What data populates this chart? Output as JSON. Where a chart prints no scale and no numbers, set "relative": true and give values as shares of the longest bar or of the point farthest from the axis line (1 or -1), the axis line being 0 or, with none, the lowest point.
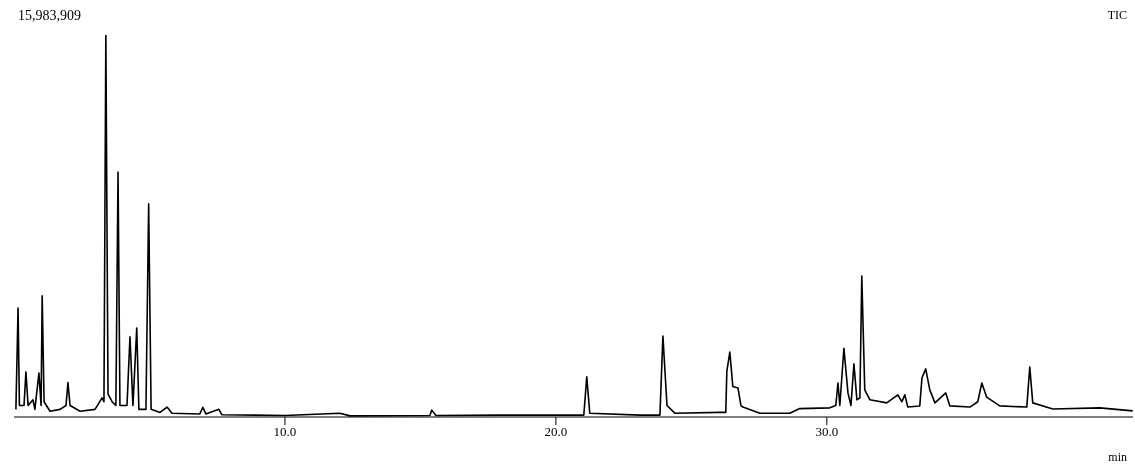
{
  "chart_data": {
    "type": "line",
    "relative": true,
    "xlabel": "min",
    "annotations": [
      "15,983,909",
      "TIC"
    ],
    "xlim": [
      0,
      41.3
    ],
    "xticks": [
      {
        "value": 10,
        "label": "10.0"
      },
      {
        "value": 20,
        "label": "20.0"
      },
      {
        "value": 30,
        "label": "30.0"
      }
    ],
    "grid": false,
    "legend": false,
    "marker": "none",
    "line_style": "solid",
    "x": [
      0.07,
      0.15,
      0.2,
      0.37,
      0.44,
      0.52,
      0.7,
      0.77,
      0.92,
      1.0,
      1.04,
      1.11,
      1.33,
      1.7,
      1.92,
      1.99,
      2.07,
      2.44,
      2.99,
      3.25,
      3.32,
      3.39,
      3.47,
      3.62,
      3.76,
      3.84,
      3.91,
      4.17,
      4.28,
      4.39,
      4.53,
      4.61,
      4.87,
      4.97,
      5.06,
      5.39,
      5.65,
      5.83,
      6.86,
      6.97,
      7.08,
      7.56,
      7.67,
      10.0,
      12.03,
      12.4,
      15.35,
      15.42,
      15.57,
      17.93,
      21.03,
      21.14,
      21.25,
      23.1,
      23.84,
      23.95,
      24.1,
      24.39,
      26.05,
      26.27,
      26.31,
      26.42,
      26.53,
      26.72,
      26.83,
      26.9,
      27.53,
      28.63,
      29.0,
      30.11,
      30.33,
      30.41,
      30.48,
      30.63,
      30.78,
      30.89,
      31.0,
      31.11,
      31.22,
      31.29,
      31.4,
      31.59,
      32.21,
      32.62,
      32.77,
      32.88,
      32.99,
      33.43,
      33.51,
      33.65,
      33.8,
      33.99,
      34.39,
      34.54,
      35.28,
      35.57,
      35.72,
      35.9,
      36.38,
      37.38,
      37.49,
      37.6,
      38.34,
      40.07,
      41.29
    ],
    "series": [
      {
        "color": "#000000",
        "values": [
          0.02,
          0.285,
          0.03,
          0.03,
          0.118,
          0.03,
          0.045,
          0.02,
          0.115,
          0.03,
          0.317,
          0.04,
          0.015,
          0.02,
          0.03,
          0.09,
          0.03,
          0.015,
          0.02,
          0.05,
          0.04,
          1.0,
          0.06,
          0.04,
          0.03,
          0.641,
          0.03,
          0.03,
          0.21,
          0.03,
          0.233,
          0.02,
          0.02,
          0.558,
          0.02,
          0.012,
          0.026,
          0.01,
          0.008,
          0.025,
          0.008,
          0.02,
          0.006,
          0.004,
          0.01,
          0.003,
          0.004,
          0.018,
          0.004,
          0.005,
          0.005,
          0.105,
          0.01,
          0.005,
          0.005,
          0.212,
          0.03,
          0.01,
          0.012,
          0.012,
          0.12,
          0.17,
          0.08,
          0.076,
          0.03,
          0.026,
          0.01,
          0.01,
          0.022,
          0.024,
          0.03,
          0.089,
          0.03,
          0.18,
          0.063,
          0.03,
          0.139,
          0.045,
          0.05,
          0.369,
          0.071,
          0.045,
          0.037,
          0.058,
          0.04,
          0.058,
          0.026,
          0.029,
          0.102,
          0.126,
          0.071,
          0.037,
          0.063,
          0.029,
          0.026,
          0.04,
          0.089,
          0.052,
          0.029,
          0.026,
          0.131,
          0.037,
          0.021,
          0.024,
          0.016
        ]
      }
    ]
  }
}
